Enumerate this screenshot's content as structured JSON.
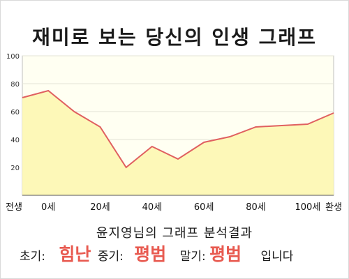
{
  "title": "재미로 보는 당신의 인생 그래프",
  "chart_data": {
    "type": "area",
    "x": [
      -10,
      0,
      10,
      20,
      30,
      40,
      50,
      60,
      70,
      80,
      90,
      100,
      110
    ],
    "values": [
      70,
      75,
      60,
      49,
      20,
      35,
      26,
      38,
      42,
      49,
      50,
      51,
      59
    ],
    "ylim": [
      0,
      100
    ],
    "yticks": [
      "20",
      "40",
      "60",
      "80",
      "100"
    ],
    "xtick_labels": [
      "전생",
      "0세",
      "20세",
      "40세",
      "60세",
      "80세",
      "100세",
      "환생"
    ],
    "xtick_positions": [
      -10,
      0,
      20,
      40,
      60,
      80,
      100,
      110
    ],
    "xlim": [
      -10,
      110
    ],
    "grid": true,
    "line_color": "#e06060",
    "fill_color": "#fdf8b8"
  },
  "result": {
    "title": "윤지영님의 그래프 분석결과",
    "early_label": "초기:",
    "early_value": "힘난",
    "middle_label": "중기:",
    "middle_value": "평범",
    "late_label": "말기:",
    "late_value": "평범",
    "suffix": "입니다"
  },
  "colors": {
    "accent": "#e85a50",
    "line": "#e06060",
    "fill": "#fdf8b8"
  }
}
